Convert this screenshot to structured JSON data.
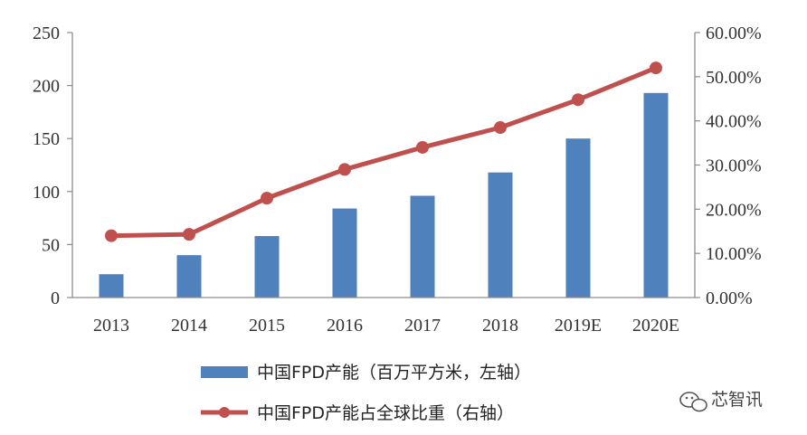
{
  "chart_data": {
    "type": "bar",
    "categories": [
      "2013",
      "2014",
      "2015",
      "2016",
      "2017",
      "2018",
      "2019E",
      "2020E"
    ],
    "series": [
      {
        "name": "中国FPD产能（百万平方米，左轴）",
        "type": "bar",
        "axis": "left",
        "values": [
          22,
          40,
          58,
          84,
          96,
          118,
          150,
          193
        ],
        "color": "#4F81BD"
      },
      {
        "name": "中国FPD产能占全球比重（右轴）",
        "type": "line",
        "axis": "right",
        "values": [
          0.14,
          0.143,
          0.225,
          0.29,
          0.34,
          0.385,
          0.448,
          0.52
        ],
        "color": "#C0504D"
      }
    ],
    "y_left": {
      "lim": [
        0,
        250
      ],
      "ticks": [
        "0",
        "50",
        "100",
        "150",
        "200",
        "250"
      ]
    },
    "y_right": {
      "lim": [
        0,
        0.6
      ],
      "ticks": [
        "0.00%",
        "10.00%",
        "20.00%",
        "30.00%",
        "40.00%",
        "50.00%",
        "60.00%"
      ]
    },
    "grid": false,
    "legend_position": "bottom"
  },
  "watermark": {
    "text": "芯智讯",
    "icon": "wechat-icon"
  }
}
